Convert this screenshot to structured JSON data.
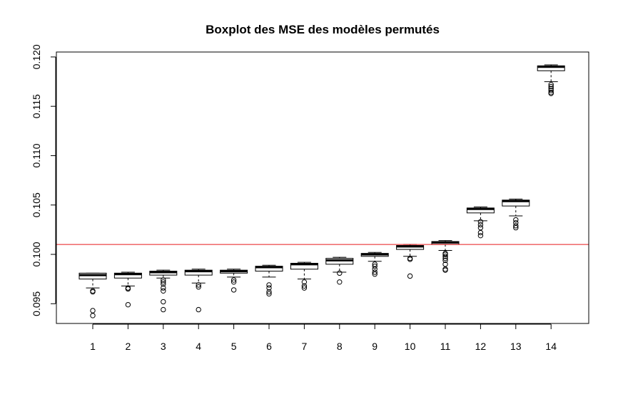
{
  "chart_data": {
    "type": "boxplot",
    "title": "Boxplot des MSE des modèles permutés",
    "xlabel": "",
    "ylabel": "",
    "categories": [
      "1",
      "2",
      "3",
      "4",
      "5",
      "6",
      "7",
      "8",
      "9",
      "10",
      "11",
      "12",
      "13",
      "14"
    ],
    "ylim": [
      0.093,
      0.1205
    ],
    "y_ticks": [
      0.095,
      0.1,
      0.105,
      0.11,
      0.115,
      0.12
    ],
    "y_tick_labels": [
      "0.095",
      "0.100",
      "0.105",
      "0.110",
      "0.115",
      "0.120"
    ],
    "reference_line": {
      "y": 0.101,
      "color": "#e8191b"
    },
    "boxes": [
      {
        "whisker_low": 0.0966,
        "q1": 0.0975,
        "median": 0.0979,
        "q3": 0.0981,
        "whisker_high": 0.0981,
        "outliers": [
          0.0962,
          0.0963,
          0.0943,
          0.0938
        ]
      },
      {
        "whisker_low": 0.0968,
        "q1": 0.0976,
        "median": 0.098,
        "q3": 0.0981,
        "whisker_high": 0.0982,
        "outliers": [
          0.0965,
          0.0966,
          0.0949
        ]
      },
      {
        "whisker_low": 0.0976,
        "q1": 0.0979,
        "median": 0.0982,
        "q3": 0.0983,
        "whisker_high": 0.0984,
        "outliers": [
          0.0974,
          0.0972,
          0.097,
          0.0966,
          0.0963,
          0.0952,
          0.0944
        ]
      },
      {
        "whisker_low": 0.0971,
        "q1": 0.0979,
        "median": 0.0983,
        "q3": 0.0984,
        "whisker_high": 0.0985,
        "outliers": [
          0.0969,
          0.0967,
          0.0944
        ]
      },
      {
        "whisker_low": 0.0977,
        "q1": 0.0981,
        "median": 0.0983,
        "q3": 0.0984,
        "whisker_high": 0.0985,
        "outliers": [
          0.0974,
          0.0972,
          0.0964
        ]
      },
      {
        "whisker_low": 0.0977,
        "q1": 0.0983,
        "median": 0.0987,
        "q3": 0.0988,
        "whisker_high": 0.0989,
        "outliers": [
          0.0969,
          0.0966,
          0.0962,
          0.096
        ]
      },
      {
        "whisker_low": 0.0975,
        "q1": 0.0985,
        "median": 0.099,
        "q3": 0.0991,
        "whisker_high": 0.0992,
        "outliers": [
          0.0972,
          0.0968,
          0.0966
        ]
      },
      {
        "whisker_low": 0.0982,
        "q1": 0.099,
        "median": 0.0994,
        "q3": 0.0996,
        "whisker_high": 0.0997,
        "outliers": [
          0.0981,
          0.0972
        ]
      },
      {
        "whisker_low": 0.0993,
        "q1": 0.0998,
        "median": 0.1,
        "q3": 0.1001,
        "whisker_high": 0.1002,
        "outliers": [
          0.099,
          0.0988,
          0.0985,
          0.0982,
          0.098
        ]
      },
      {
        "whisker_low": 0.0998,
        "q1": 0.1005,
        "median": 0.1008,
        "q3": 0.1009,
        "whisker_high": 0.101,
        "outliers": [
          0.0996,
          0.0995,
          0.0978
        ]
      },
      {
        "whisker_low": 0.1004,
        "q1": 0.101,
        "median": 0.1012,
        "q3": 0.1013,
        "whisker_high": 0.1014,
        "outliers": [
          0.1001,
          0.1,
          0.0998,
          0.0996,
          0.0994,
          0.099,
          0.0985,
          0.0984
        ]
      },
      {
        "whisker_low": 0.1034,
        "q1": 0.1042,
        "median": 0.1046,
        "q3": 0.1047,
        "whisker_high": 0.1048,
        "outliers": [
          0.1033,
          0.103,
          0.1027,
          0.1022,
          0.1019
        ]
      },
      {
        "whisker_low": 0.1039,
        "q1": 0.1049,
        "median": 0.1054,
        "q3": 0.1055,
        "whisker_high": 0.1056,
        "outliers": [
          0.1035,
          0.1032,
          0.1029,
          0.1027
        ]
      },
      {
        "whisker_low": 0.1175,
        "q1": 0.1186,
        "median": 0.119,
        "q3": 0.1191,
        "whisker_high": 0.1192,
        "outliers": [
          0.1172,
          0.117,
          0.1168,
          0.1166,
          0.1164,
          0.1163
        ]
      }
    ],
    "grid": false,
    "legend": "none"
  }
}
